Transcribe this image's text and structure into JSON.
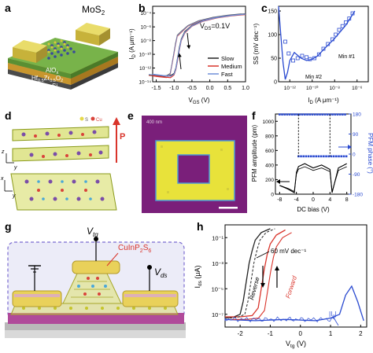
{
  "panel_labels": [
    "a",
    "b",
    "c",
    "d",
    "e",
    "f",
    "g",
    "h"
  ],
  "a": {
    "title": "MoS",
    "title_sub": "2",
    "layers": {
      "alox": "AlO",
      "alox_sub": "x",
      "hzo": "Hf",
      "hzo_sub1": "0.5",
      "hzo_mid": "Zr",
      "hzo_sub2": "0.5",
      "hzo_end": "O",
      "hzo_sub3": "2",
      "si": "Si"
    }
  },
  "b": {
    "annotation": "V",
    "annotation_sub": "DS",
    "annotation_rest": "=0.1V",
    "ylabel": "I",
    "ylabel_sub": "D",
    "ylabel_unit": " (A μm⁻¹)",
    "xlabel": "V",
    "xlabel_sub": "GS",
    "xlabel_unit": " (V)",
    "xticks": [
      "-1.5",
      "-1.0",
      "-0.5",
      "0.0",
      "0.5",
      "1.0"
    ],
    "yticks": [
      "10⁻⁴",
      "10⁻⁶",
      "10⁻⁸",
      "10⁻¹⁰",
      "10⁻¹²",
      "10⁻¹⁴"
    ],
    "legend": [
      {
        "name": "Slow",
        "color": "#222222"
      },
      {
        "name": "Medium",
        "color": "#d9342b"
      },
      {
        "name": "Fast",
        "color": "#6f8fd8"
      }
    ]
  },
  "c": {
    "ylabel": "SS (mV dec⁻¹)",
    "xlabel": "I",
    "xlabel_sub": "D",
    "xlabel_unit": " (A μm⁻¹)",
    "yticks": [
      "150",
      "100",
      "50",
      "0"
    ],
    "xticks": [
      "10⁻¹²",
      "10⁻¹⁰",
      "10⁻⁸",
      "10⁻⁶"
    ],
    "annotations": [
      "Min #1",
      "Min #2"
    ]
  },
  "d": {
    "legend": [
      "S",
      "Cu"
    ],
    "axis_z": "z",
    "axis_y": "y",
    "axis_x": "x",
    "axis_y2": "y",
    "polarization": "P"
  },
  "e": {
    "scale_text": "400 nm"
  },
  "f": {
    "ylabel_left": "PFM amplitude (pm)",
    "ylabel_right": "PFM phase (°)",
    "xlabel": "DC bias (V)",
    "yticks_left": [
      "1000",
      "800",
      "600",
      "400",
      "200",
      "0"
    ],
    "yticks_right": [
      "180",
      "90",
      "0",
      "-90",
      "-180"
    ],
    "xticks": [
      "-8",
      "-4",
      "0",
      "4",
      "8"
    ]
  },
  "g": {
    "label_vtg": "V",
    "label_vtg_sub": "tg",
    "label_material": "CuInP",
    "label_material_sub1": "2",
    "label_material_mid": "S",
    "label_material_sub2": "6",
    "label_vds": "V",
    "label_vds_sub": "ds"
  },
  "h": {
    "ylabel": "I",
    "ylabel_sub": "ds",
    "ylabel_unit": " (μA)",
    "xlabel": "V",
    "xlabel_sub": "tg",
    "xlabel_unit": " (V)",
    "xticks": [
      "-2",
      "-1",
      "0",
      "1",
      "2"
    ],
    "yticks": [
      "10⁻¹",
      "10⁻³",
      "10⁻⁵",
      "10⁻⁷"
    ],
    "annotations": [
      "60 mV dec⁻¹",
      "Reverse",
      "Forward",
      "|I",
      "g",
      "|"
    ]
  },
  "chart_data": [
    {
      "type": "line",
      "title": "",
      "xlabel": "VGS (V)",
      "ylabel": "ID (A μm⁻¹)",
      "xlim": [
        -1.6,
        1.0
      ],
      "ylim_log10": [
        -14,
        -3
      ],
      "series": [
        {
          "name": "Slow",
          "x": [
            -1.6,
            -1.3,
            -1.1,
            -1.0,
            -0.95,
            -0.9,
            -0.85,
            -0.8,
            -0.7,
            -0.5,
            -0.2,
            0.2,
            0.6,
            1.0
          ],
          "log10_y": [
            -13.0,
            -13.2,
            -13.1,
            -12.8,
            -12.0,
            -10.5,
            -9.0,
            -7.8,
            -6.7,
            -5.8,
            -5.1,
            -4.6,
            -4.3,
            -4.1
          ]
        },
        {
          "name": "Medium",
          "x": [
            -1.6,
            -1.3,
            -1.1,
            -1.0,
            -0.95,
            -0.9,
            -0.85,
            -0.8,
            -0.7,
            -0.5,
            -0.2,
            0.2,
            0.6,
            1.0
          ],
          "log10_y": [
            -13.1,
            -13.3,
            -13.4,
            -13.0,
            -12.2,
            -10.8,
            -9.3,
            -8.0,
            -6.9,
            -5.9,
            -5.2,
            -4.7,
            -4.4,
            -4.2
          ]
        },
        {
          "name": "Fast",
          "x": [
            -1.6,
            -1.3,
            -1.1,
            -1.0,
            -0.95,
            -0.9,
            -0.85,
            -0.8,
            -0.7,
            -0.5,
            -0.2,
            0.2,
            0.6,
            1.0
          ],
          "log10_y": [
            -12.9,
            -13.1,
            -13.2,
            -12.9,
            -12.1,
            -10.6,
            -9.2,
            -7.9,
            -6.8,
            -5.85,
            -5.15,
            -4.65,
            -4.35,
            -4.15
          ]
        }
      ]
    },
    {
      "type": "scatter",
      "xlabel": "ID (A μm⁻¹)",
      "ylabel": "SS (mV dec⁻¹)",
      "xlim_log10": [
        -13,
        -5
      ],
      "ylim": [
        0,
        160
      ],
      "series": [
        {
          "name": "",
          "log10_x": [
            -12.4,
            -12.1,
            -11.7,
            -11.3,
            -10.9,
            -10.5,
            -10.2,
            -9.8,
            -9.4,
            -9.0,
            -8.6,
            -8.2,
            -7.9,
            -7.6,
            -7.3,
            -7.0,
            -6.7,
            -6.4
          ],
          "y": [
            85,
            60,
            45,
            50,
            55,
            52,
            48,
            50,
            58,
            70,
            80,
            90,
            100,
            110,
            118,
            126,
            134,
            145
          ]
        },
        {
          "name": "",
          "type": "line",
          "log10_x": [
            -13,
            -12.8,
            -12.6,
            -12.4,
            -12.2,
            -12.0,
            -11.6,
            -11.0,
            -10.5,
            -10.0,
            -9.5,
            -9.0,
            -8.0,
            -7.0,
            -6.2
          ],
          "y": [
            160,
            100,
            40,
            5,
            20,
            45,
            62,
            50,
            45,
            48,
            55,
            68,
            92,
            120,
            150
          ]
        }
      ]
    },
    {
      "type": "line",
      "xlabel": "DC bias (V)",
      "ylabel": "PFM amplitude (pm)",
      "y2label": "PFM phase (°)",
      "xlim": [
        -9,
        9
      ],
      "ylim": [
        0,
        1100
      ],
      "y2lim": [
        -180,
        180
      ],
      "series": [
        {
          "name": "",
          "axis": "right",
          "x": [
            -8,
            -6,
            -4,
            -3.5,
            -3.5,
            0,
            3.5,
            4,
            6,
            8
          ],
          "y": [
            178,
            178,
            178,
            178,
            -10,
            -10,
            -10,
            -10,
            -10,
            -10
          ]
        },
        {
          "name": "",
          "axis": "left",
          "x": [
            -8,
            -6,
            -4.5,
            -4,
            -3.5,
            -2,
            0,
            2,
            4,
            4.5,
            6,
            8
          ],
          "y": [
            120,
            70,
            20,
            300,
            380,
            420,
            360,
            400,
            340,
            20,
            360,
            420
          ]
        }
      ]
    },
    {
      "type": "line",
      "xlabel": "Vtg (V)",
      "ylabel": "Ids (μA)",
      "xlim": [
        -2.5,
        2.2
      ],
      "ylim_log10": [
        -8,
        0
      ],
      "series": [
        {
          "name": "Reverse",
          "x": [
            -2.5,
            -2.2,
            -2.0,
            -1.9,
            -1.8,
            -1.7,
            -1.6,
            -1.5,
            -1.3,
            -1.0
          ],
          "log10_y": [
            -7.3,
            -7.2,
            -7.0,
            -6.0,
            -4.5,
            -3.0,
            -2.0,
            -1.2,
            -0.6,
            -0.3
          ]
        },
        {
          "name": "Forward",
          "x": [
            -2.5,
            -2.0,
            -1.6,
            -1.4,
            -1.3,
            -1.2,
            -1.1,
            -1.0,
            -0.8,
            -0.5
          ],
          "log10_y": [
            -7.2,
            -7.2,
            -7.1,
            -6.5,
            -5.0,
            -3.5,
            -2.3,
            -1.5,
            -0.8,
            -0.4
          ]
        },
        {
          "name": "|Ig|",
          "x": [
            -2.5,
            -1.5,
            -0.5,
            0.5,
            1.0,
            1.3,
            1.5,
            1.7,
            1.9,
            2.1
          ],
          "log10_y": [
            -7.4,
            -7.5,
            -7.4,
            -7.5,
            -7.3,
            -7.0,
            -5.5,
            -4.8,
            -6.0,
            -7.5
          ]
        }
      ]
    }
  ]
}
